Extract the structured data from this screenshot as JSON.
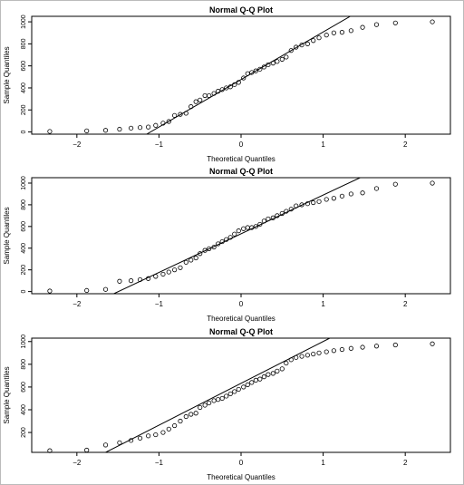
{
  "chart_data": [
    {
      "type": "scatter",
      "title": "Normal Q-Q Plot",
      "xlabel": "Theoretical Quantiles",
      "ylabel": "Sample Quantiles",
      "xlim": [
        -2.55,
        2.55
      ],
      "ylim": [
        -20,
        1050
      ],
      "xticks": [
        -2,
        -1,
        0,
        1,
        2
      ],
      "yticks": [
        0,
        200,
        400,
        600,
        800,
        1000
      ],
      "grid": false,
      "reference_line": {
        "x1": -1.15,
        "y1": -20,
        "x2": 1.33,
        "y2": 1050
      },
      "series": [
        {
          "x": [
            -2.33,
            -1.88,
            -1.65,
            -1.48,
            -1.34,
            -1.23,
            -1.13,
            -1.04,
            -0.95,
            -0.88,
            -0.81,
            -0.74,
            -0.67,
            -0.61,
            -0.55,
            -0.5,
            -0.44,
            -0.39,
            -0.33,
            -0.28,
            -0.23,
            -0.18,
            -0.13,
            -0.08,
            -0.03,
            0.03,
            0.08,
            0.13,
            0.18,
            0.23,
            0.28,
            0.33,
            0.39,
            0.44,
            0.5,
            0.55,
            0.61,
            0.67,
            0.74,
            0.81,
            0.88,
            0.95,
            1.04,
            1.13,
            1.23,
            1.34,
            1.48,
            1.65,
            1.88,
            2.33
          ],
          "y": [
            5,
            10,
            15,
            25,
            35,
            40,
            45,
            60,
            80,
            95,
            150,
            160,
            170,
            230,
            275,
            290,
            330,
            330,
            350,
            370,
            385,
            400,
            410,
            430,
            450,
            490,
            530,
            540,
            555,
            570,
            590,
            610,
            625,
            640,
            660,
            680,
            740,
            770,
            790,
            800,
            830,
            855,
            880,
            900,
            905,
            920,
            950,
            975,
            990,
            1000
          ]
        }
      ]
    },
    {
      "type": "scatter",
      "title": "Normal Q-Q Plot",
      "xlabel": "Theoretical Quantiles",
      "ylabel": "Sample Quantiles",
      "xlim": [
        -2.55,
        2.55
      ],
      "ylim": [
        -20,
        1050
      ],
      "xticks": [
        -2,
        -1,
        0,
        1,
        2
      ],
      "yticks": [
        0,
        200,
        400,
        600,
        800,
        1000
      ],
      "grid": false,
      "reference_line": {
        "x1": -1.55,
        "y1": -20,
        "x2": 1.45,
        "y2": 1050
      },
      "series": [
        {
          "x": [
            -2.33,
            -1.88,
            -1.65,
            -1.48,
            -1.34,
            -1.23,
            -1.13,
            -1.04,
            -0.95,
            -0.88,
            -0.81,
            -0.74,
            -0.67,
            -0.61,
            -0.55,
            -0.5,
            -0.44,
            -0.39,
            -0.33,
            -0.28,
            -0.23,
            -0.18,
            -0.13,
            -0.08,
            -0.03,
            0.03,
            0.08,
            0.13,
            0.18,
            0.23,
            0.28,
            0.33,
            0.39,
            0.44,
            0.5,
            0.55,
            0.61,
            0.67,
            0.74,
            0.81,
            0.88,
            0.95,
            1.04,
            1.13,
            1.23,
            1.34,
            1.48,
            1.65,
            1.88,
            2.33
          ],
          "y": [
            5,
            10,
            20,
            95,
            100,
            110,
            120,
            140,
            160,
            180,
            200,
            220,
            270,
            290,
            310,
            350,
            380,
            395,
            410,
            440,
            460,
            480,
            500,
            530,
            560,
            580,
            590,
            590,
            600,
            620,
            650,
            670,
            680,
            700,
            720,
            740,
            760,
            790,
            800,
            810,
            820,
            830,
            850,
            860,
            880,
            900,
            910,
            950,
            990,
            1000
          ]
        }
      ]
    },
    {
      "type": "scatter",
      "title": "Normal Q-Q Plot",
      "xlabel": "Theoretical Quantiles",
      "ylabel": "Sample Quantiles",
      "xlim": [
        -2.55,
        2.55
      ],
      "ylim": [
        25,
        1030
      ],
      "xticks": [
        -2,
        -1,
        0,
        1,
        2
      ],
      "yticks": [
        200,
        400,
        600,
        800,
        1000
      ],
      "grid": false,
      "reference_line": {
        "x1": -1.65,
        "y1": 25,
        "x2": 1.08,
        "y2": 1030
      },
      "series": [
        {
          "x": [
            -2.33,
            -1.88,
            -1.65,
            -1.48,
            -1.34,
            -1.23,
            -1.13,
            -1.04,
            -0.95,
            -0.88,
            -0.81,
            -0.74,
            -0.67,
            -0.61,
            -0.55,
            -0.5,
            -0.44,
            -0.39,
            -0.33,
            -0.28,
            -0.23,
            -0.18,
            -0.13,
            -0.08,
            -0.03,
            0.03,
            0.08,
            0.13,
            0.18,
            0.23,
            0.28,
            0.33,
            0.39,
            0.44,
            0.5,
            0.55,
            0.61,
            0.67,
            0.74,
            0.81,
            0.88,
            0.95,
            1.04,
            1.13,
            1.23,
            1.34,
            1.48,
            1.65,
            1.88,
            2.33
          ],
          "y": [
            40,
            45,
            90,
            110,
            130,
            150,
            170,
            180,
            200,
            230,
            260,
            300,
            340,
            360,
            370,
            420,
            440,
            460,
            480,
            490,
            500,
            520,
            540,
            560,
            580,
            600,
            620,
            640,
            660,
            670,
            690,
            710,
            720,
            740,
            760,
            810,
            840,
            860,
            870,
            880,
            890,
            900,
            910,
            920,
            930,
            940,
            950,
            960,
            970,
            980
          ]
        }
      ]
    }
  ]
}
